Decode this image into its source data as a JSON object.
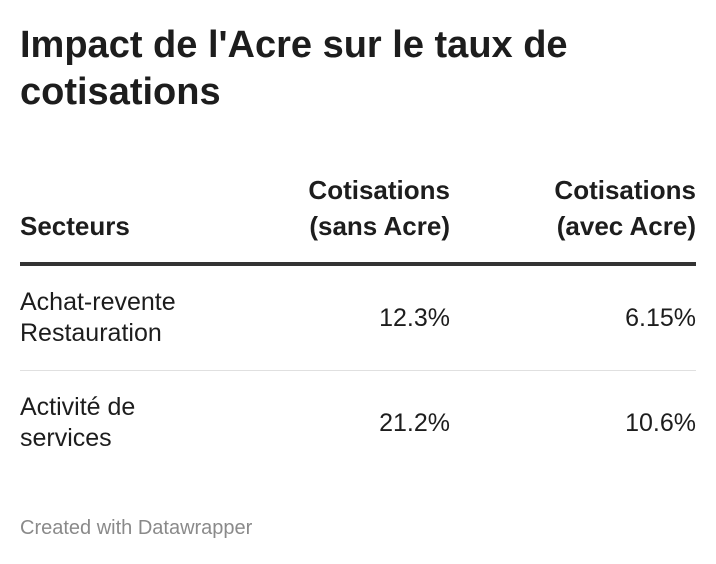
{
  "chart_data": {
    "type": "table",
    "title": "Impact de l'Acre sur le taux de cotisations",
    "columns": [
      "Secteurs",
      "Cotisations (sans Acre)",
      "Cotisations (avec Acre)"
    ],
    "rows": [
      {
        "sector_line1": "Achat-revente",
        "sector_line2": "Restauration",
        "sans_acre": "12.3%",
        "avec_acre": "6.15%"
      },
      {
        "sector_line1": "Activité de",
        "sector_line2": "services",
        "sans_acre": "21.2%",
        "avec_acre": "10.6%"
      }
    ],
    "values": {
      "sans_acre": [
        12.3,
        21.2
      ],
      "avec_acre": [
        6.15,
        10.6
      ]
    }
  },
  "header": {
    "col1": "Secteurs",
    "col2_line1": "Cotisations",
    "col2_line2": "(sans Acre)",
    "col3_line1": "Cotisations",
    "col3_line2": "(avec Acre)"
  },
  "footer": {
    "credit": "Created with Datawrapper"
  }
}
